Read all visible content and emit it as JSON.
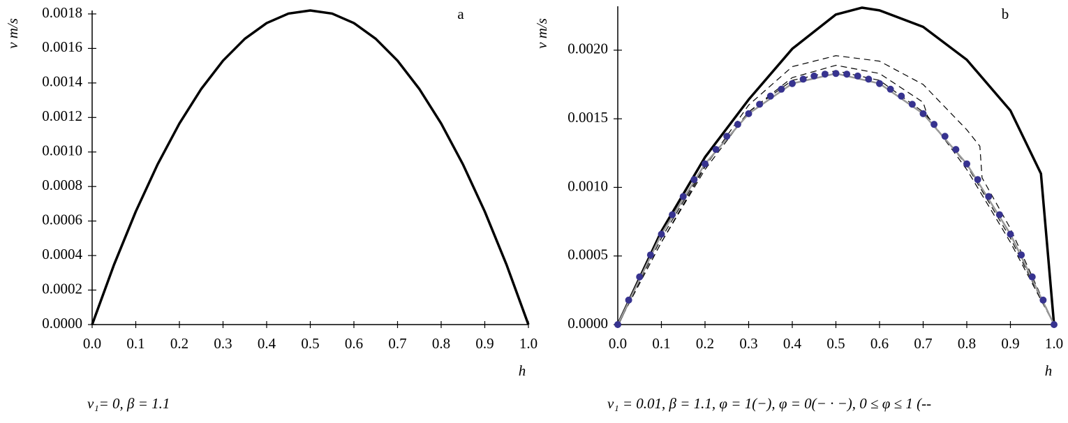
{
  "chart_data": [
    {
      "type": "line",
      "label": "a",
      "ylabel": "v m/s",
      "xlabel": "h",
      "caption": "v₁= 0, β = 1.1",
      "xlim": [
        0,
        1
      ],
      "ylim": [
        0,
        0.00182
      ],
      "xticks": [
        {
          "value": 0,
          "label": "0.0"
        },
        {
          "value": 0.1,
          "label": "0.1"
        },
        {
          "value": 0.2,
          "label": "0.2"
        },
        {
          "value": 0.3,
          "label": "0.3"
        },
        {
          "value": 0.4,
          "label": "0.4"
        },
        {
          "value": 0.5,
          "label": "0.5"
        },
        {
          "value": 0.6,
          "label": "0.6"
        },
        {
          "value": 0.7,
          "label": "0.7"
        },
        {
          "value": 0.8,
          "label": "0.8"
        },
        {
          "value": 0.9,
          "label": "0.9"
        },
        {
          "value": 1,
          "label": "1.0"
        }
      ],
      "yticks": [
        {
          "value": 0,
          "label": "0.0000"
        },
        {
          "value": 0.0002,
          "label": "0.0002"
        },
        {
          "value": 0.0004,
          "label": "0.0004"
        },
        {
          "value": 0.0006,
          "label": "0.0006"
        },
        {
          "value": 0.0008,
          "label": "0.0008"
        },
        {
          "value": 0.001,
          "label": "0.0010"
        },
        {
          "value": 0.0012,
          "label": "0.0012"
        },
        {
          "value": 0.0014,
          "label": "0.0014"
        },
        {
          "value": 0.0016,
          "label": "0.0016"
        },
        {
          "value": 0.0018,
          "label": "0.0018"
        }
      ],
      "series": [
        {
          "color": "#000000",
          "style": "solid",
          "width": 3.5,
          "x": [
            0,
            0.05,
            0.1,
            0.15,
            0.2,
            0.25,
            0.3,
            0.35,
            0.4,
            0.45,
            0.5,
            0.55,
            0.6,
            0.65,
            0.7,
            0.75,
            0.8,
            0.85,
            0.9,
            0.95,
            1
          ],
          "values": [
            0,
            0.000346,
            0.000655,
            0.000928,
            0.001165,
            0.001365,
            0.001529,
            0.001656,
            0.001747,
            0.001802,
            0.00182,
            0.001802,
            0.001747,
            0.001656,
            0.001529,
            0.001365,
            0.001165,
            0.000928,
            0.000655,
            0.000346,
            0
          ]
        }
      ]
    },
    {
      "type": "line",
      "label": "b",
      "ylabel": "v m/s",
      "xlabel": "h",
      "caption": "v₁ = 0.01, β = 1.1, φ = 1(−), φ = 0(− · −), 0 ≤ φ ≤ 1 (--",
      "xlim": [
        0,
        1
      ],
      "ylim": [
        0,
        0.00232
      ],
      "xticks": [
        {
          "value": 0,
          "label": "0.0"
        },
        {
          "value": 0.1,
          "label": "0.1"
        },
        {
          "value": 0.2,
          "label": "0.2"
        },
        {
          "value": 0.3,
          "label": "0.3"
        },
        {
          "value": 0.4,
          "label": "0.4"
        },
        {
          "value": 0.5,
          "label": "0.5"
        },
        {
          "value": 0.6,
          "label": "0.6"
        },
        {
          "value": 0.7,
          "label": "0.7"
        },
        {
          "value": 0.8,
          "label": "0.8"
        },
        {
          "value": 0.9,
          "label": "0.9"
        },
        {
          "value": 1,
          "label": "1.0"
        }
      ],
      "yticks": [
        {
          "value": 0,
          "label": "0.0000"
        },
        {
          "value": 0.0005,
          "label": "0.0005"
        },
        {
          "value": 0.001,
          "label": "0.0010"
        },
        {
          "value": 0.0015,
          "label": "0.0015"
        },
        {
          "value": 0.002,
          "label": "0.0020"
        }
      ],
      "series": [
        {
          "color": "#000000",
          "style": "solid",
          "width": 3.5,
          "x": [
            0,
            0.1,
            0.2,
            0.3,
            0.4,
            0.5,
            0.56,
            0.6,
            0.7,
            0.8,
            0.9,
            0.97,
            1
          ],
          "values": [
            0,
            0.00068,
            0.00122,
            0.00164,
            0.00201,
            0.00226,
            0.00231,
            0.00229,
            0.00217,
            0.00193,
            0.00156,
            0.0011,
            0
          ]
        },
        {
          "color": "#000000",
          "style": "dashed",
          "width": 1.2,
          "x": [
            0,
            0.1,
            0.2,
            0.3,
            0.4,
            0.5,
            0.6,
            0.7,
            0.8,
            0.83,
            0.835,
            0.9,
            1
          ],
          "values": [
            0,
            0.0006,
            0.00115,
            0.0016,
            0.00188,
            0.00196,
            0.00192,
            0.00175,
            0.00142,
            0.0013,
            0.00107,
            0.0007,
            0
          ]
        },
        {
          "color": "#000000",
          "style": "dashed",
          "width": 1.2,
          "x": [
            0,
            0.1,
            0.2,
            0.3,
            0.4,
            0.5,
            0.6,
            0.7,
            0.71,
            0.8,
            0.9,
            1
          ],
          "values": [
            0,
            0.0006,
            0.00113,
            0.00155,
            0.0018,
            0.00189,
            0.00183,
            0.00162,
            0.00152,
            0.00113,
            0.0006,
            0
          ]
        },
        {
          "color": "#000000",
          "style": "dashed",
          "width": 1.2,
          "x": [
            0,
            0.1,
            0.2,
            0.3,
            0.4,
            0.5,
            0.6,
            0.7,
            0.8,
            0.9,
            1
          ],
          "values": [
            0,
            0.00063,
            0.00116,
            0.00155,
            0.00178,
            0.00185,
            0.00178,
            0.00155,
            0.00116,
            0.00063,
            0
          ]
        },
        {
          "color": "#999999",
          "style": "solid",
          "width": 2.5,
          "x": [
            0,
            0.1,
            0.2,
            0.3,
            0.4,
            0.5,
            0.6,
            0.7,
            0.8,
            0.9,
            1
          ],
          "values": [
            0,
            0.000659,
            0.001171,
            0.001537,
            0.001757,
            0.00183,
            0.001757,
            0.001537,
            0.001171,
            0.000659,
            0
          ]
        },
        {
          "color": "#37338f",
          "style": "markers",
          "width": 5,
          "x": [
            0,
            0.025,
            0.05,
            0.075,
            0.1,
            0.125,
            0.15,
            0.175,
            0.2,
            0.225,
            0.25,
            0.275,
            0.3,
            0.325,
            0.35,
            0.375,
            0.4,
            0.425,
            0.45,
            0.475,
            0.5,
            0.525,
            0.55,
            0.575,
            0.6,
            0.625,
            0.65,
            0.675,
            0.7,
            0.725,
            0.75,
            0.775,
            0.8,
            0.825,
            0.85,
            0.875,
            0.9,
            0.925,
            0.95,
            0.975,
            1
          ],
          "values": [
            0,
            0.0001784,
            0.0003477,
            0.0005078,
            0.0006588,
            0.0008006,
            0.0009333,
            0.0010568,
            0.0011712,
            0.0012764,
            0.0013725,
            0.0014594,
            0.0015372,
            0.0016058,
            0.0016653,
            0.0017156,
            0.0017568,
            0.0017888,
            0.0018117,
            0.0018254,
            0.00183,
            0.0018254,
            0.0018117,
            0.0017888,
            0.0017568,
            0.0017156,
            0.0016653,
            0.0016058,
            0.0015372,
            0.0014594,
            0.0013725,
            0.0012764,
            0.0011712,
            0.0010568,
            0.0009333,
            0.0008006,
            0.0006588,
            0.0005078,
            0.0003477,
            0.0001784,
            0
          ]
        }
      ]
    }
  ]
}
